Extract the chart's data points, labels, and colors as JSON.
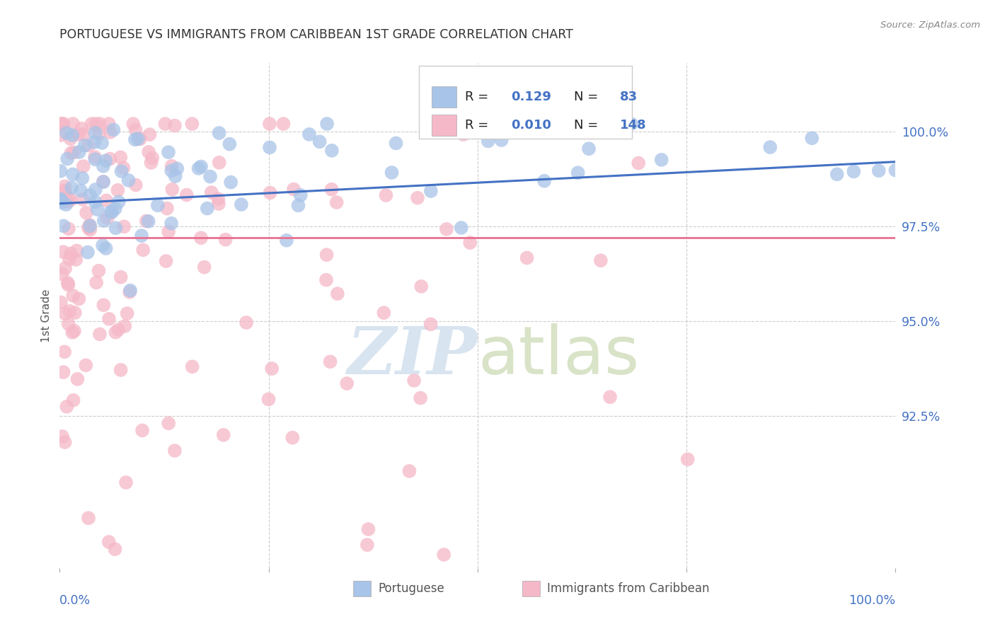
{
  "title": "PORTUGUESE VS IMMIGRANTS FROM CARIBBEAN 1ST GRADE CORRELATION CHART",
  "source": "Source: ZipAtlas.com",
  "ylabel": "1st Grade",
  "legend_label1": "Portuguese",
  "legend_label2": "Immigrants from Caribbean",
  "R1": 0.129,
  "N1": 83,
  "R2": 0.01,
  "N2": 148,
  "color_blue": "#a8c4e8",
  "color_pink": "#f5b8c8",
  "color_blue_line": "#4472c4",
  "color_pink_line": "#e87090",
  "color_text_blue": "#4472c4",
  "color_grid": "#cccccc",
  "watermark_color": "#d8e4f0",
  "xlim": [
    0.0,
    1.0
  ],
  "ylim": [
    0.885,
    1.018
  ],
  "ytick_vals": [
    0.925,
    0.95,
    0.975,
    1.0
  ],
  "ytick_labels": [
    "92.5%",
    "95.0%",
    "97.5%",
    "100.0%"
  ],
  "blue_line_y0": 0.981,
  "blue_line_y1": 0.992,
  "pink_line_y0": 0.972,
  "pink_line_y1": 0.972
}
